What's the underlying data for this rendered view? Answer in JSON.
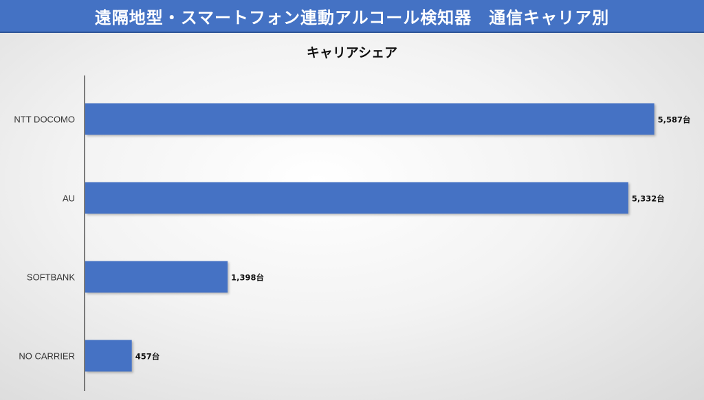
{
  "header": {
    "title": "遠隔地型・スマートフォン連動アルコール検知器　通信キャリア別"
  },
  "chart_data": {
    "type": "bar",
    "orientation": "horizontal",
    "title": "キャリアシェア",
    "categories": [
      "NTT DOCOMO",
      "AU",
      "SOFTBANK",
      "NO CARRIER"
    ],
    "values": [
      5587,
      5332,
      1398,
      457
    ],
    "data_labels": [
      "5,587台",
      "5,332台",
      "1,398台",
      "457台"
    ],
    "unit": "台",
    "xlim": [
      0,
      5650
    ],
    "grid": false,
    "legend": "none",
    "bar_color": "#4472c4"
  }
}
